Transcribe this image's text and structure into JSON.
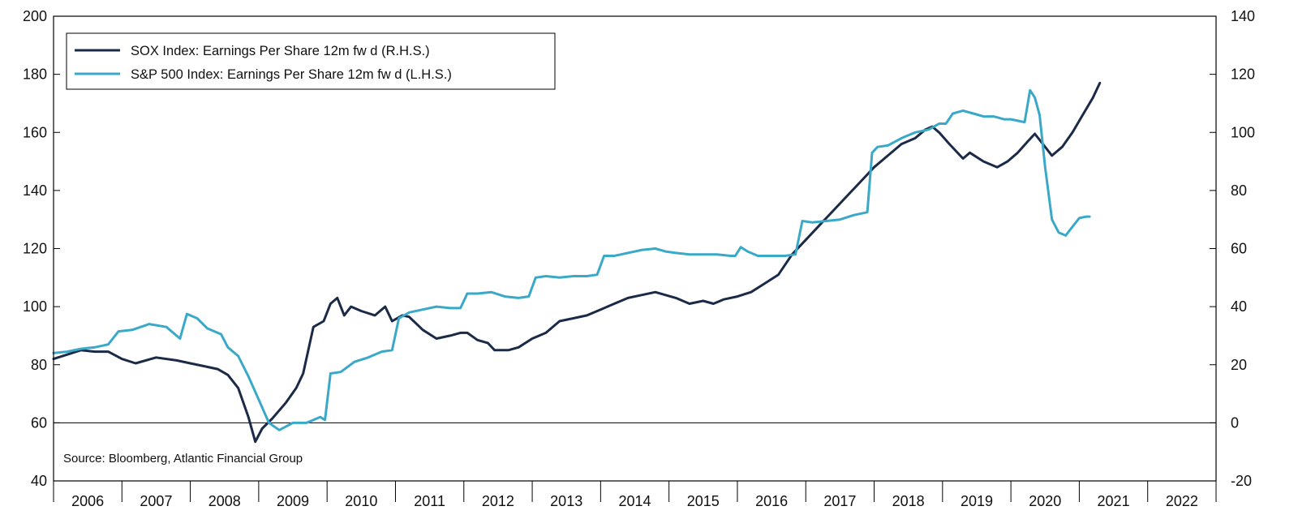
{
  "chart_data": {
    "type": "line",
    "title": "",
    "xlabel": "",
    "ylabel_left": "",
    "ylabel_right": "",
    "source": "Source: Bloomberg, Atlantic Financial Group",
    "x_categories": [
      "2006",
      "2007",
      "2008",
      "2009",
      "2010",
      "2011",
      "2012",
      "2013",
      "2014",
      "2015",
      "2016",
      "2017",
      "2018",
      "2019",
      "2020",
      "2021",
      "2022"
    ],
    "x_range": [
      2006.0,
      2023.0
    ],
    "y_left": {
      "range": [
        40,
        200
      ],
      "ticks": [
        "40",
        "60",
        "80",
        "100",
        "120",
        "140",
        "160",
        "180",
        "200"
      ]
    },
    "y_right": {
      "range": [
        -20,
        140
      ],
      "ticks": [
        "-20",
        "0",
        "20",
        "40",
        "60",
        "80",
        "100",
        "120",
        "140"
      ]
    },
    "reference_line": {
      "axis": "left",
      "value": 60
    },
    "grid": false,
    "legend_position": "top-left",
    "series": [
      {
        "name": "SOX Index: Earnings Per Share 12m fw d (R.H.S.)",
        "axis": "right",
        "color": "#1b2a47",
        "points": [
          [
            2006.0,
            22
          ],
          [
            2006.2,
            23.5
          ],
          [
            2006.4,
            25
          ],
          [
            2006.6,
            24.5
          ],
          [
            2006.8,
            24.5
          ],
          [
            2007.0,
            22
          ],
          [
            2007.2,
            20.5
          ],
          [
            2007.5,
            22.5
          ],
          [
            2007.8,
            21.5
          ],
          [
            2008.0,
            20.5
          ],
          [
            2008.2,
            19.5
          ],
          [
            2008.4,
            18.5
          ],
          [
            2008.55,
            16.5
          ],
          [
            2008.7,
            12
          ],
          [
            2008.85,
            2
          ],
          [
            2008.95,
            -6.5
          ],
          [
            2009.05,
            -2
          ],
          [
            2009.2,
            1.5
          ],
          [
            2009.4,
            7
          ],
          [
            2009.55,
            12
          ],
          [
            2009.65,
            17
          ],
          [
            2009.8,
            33
          ],
          [
            2009.95,
            35
          ],
          [
            2010.05,
            41
          ],
          [
            2010.15,
            43
          ],
          [
            2010.25,
            37
          ],
          [
            2010.35,
            40
          ],
          [
            2010.5,
            38.5
          ],
          [
            2010.7,
            37
          ],
          [
            2010.85,
            40
          ],
          [
            2010.95,
            35
          ],
          [
            2011.1,
            37
          ],
          [
            2011.2,
            36.5
          ],
          [
            2011.4,
            32
          ],
          [
            2011.6,
            29
          ],
          [
            2011.8,
            30
          ],
          [
            2011.95,
            31
          ],
          [
            2012.05,
            31
          ],
          [
            2012.2,
            28.5
          ],
          [
            2012.35,
            27.5
          ],
          [
            2012.45,
            25
          ],
          [
            2012.65,
            25
          ],
          [
            2012.8,
            26
          ],
          [
            2013.0,
            29
          ],
          [
            2013.2,
            31
          ],
          [
            2013.4,
            35
          ],
          [
            2013.6,
            36
          ],
          [
            2013.8,
            37
          ],
          [
            2014.0,
            39
          ],
          [
            2014.2,
            41
          ],
          [
            2014.4,
            43
          ],
          [
            2014.6,
            44
          ],
          [
            2014.8,
            45
          ],
          [
            2014.95,
            44
          ],
          [
            2015.1,
            43
          ],
          [
            2015.3,
            41
          ],
          [
            2015.5,
            42
          ],
          [
            2015.65,
            41
          ],
          [
            2015.8,
            42.5
          ],
          [
            2016.0,
            43.5
          ],
          [
            2016.2,
            45
          ],
          [
            2016.4,
            48
          ],
          [
            2016.6,
            51
          ],
          [
            2016.8,
            58
          ],
          [
            2017.0,
            63
          ],
          [
            2017.2,
            68
          ],
          [
            2017.4,
            73
          ],
          [
            2017.6,
            78
          ],
          [
            2017.8,
            83
          ],
          [
            2018.0,
            88
          ],
          [
            2018.2,
            92
          ],
          [
            2018.4,
            96
          ],
          [
            2018.6,
            98
          ],
          [
            2018.75,
            101
          ],
          [
            2018.85,
            102
          ],
          [
            2018.95,
            100
          ],
          [
            2019.1,
            96
          ],
          [
            2019.3,
            91
          ],
          [
            2019.4,
            93
          ],
          [
            2019.6,
            90
          ],
          [
            2019.8,
            88
          ],
          [
            2019.95,
            90
          ],
          [
            2020.1,
            93
          ],
          [
            2020.25,
            97
          ],
          [
            2020.35,
            99.5
          ],
          [
            2020.5,
            95
          ],
          [
            2020.6,
            92
          ],
          [
            2020.75,
            95
          ],
          [
            2020.9,
            100
          ],
          [
            2021.05,
            106
          ],
          [
            2021.2,
            112
          ],
          [
            2021.3,
            117
          ]
        ]
      },
      {
        "name": "S&P 500 Index: Earnings Per Share 12m fw d (L.H.S.)",
        "axis": "left",
        "color": "#3aa9c8",
        "points": [
          [
            2006.0,
            84
          ],
          [
            2006.2,
            84.5
          ],
          [
            2006.4,
            85.5
          ],
          [
            2006.6,
            86
          ],
          [
            2006.8,
            87
          ],
          [
            2006.95,
            91.5
          ],
          [
            2007.15,
            92
          ],
          [
            2007.4,
            94
          ],
          [
            2007.65,
            93
          ],
          [
            2007.85,
            89
          ],
          [
            2007.95,
            97.5
          ],
          [
            2008.1,
            96
          ],
          [
            2008.25,
            92.5
          ],
          [
            2008.45,
            90.5
          ],
          [
            2008.55,
            86
          ],
          [
            2008.7,
            83
          ],
          [
            2008.85,
            76
          ],
          [
            2009.0,
            68
          ],
          [
            2009.15,
            60
          ],
          [
            2009.3,
            57.5
          ],
          [
            2009.5,
            60
          ],
          [
            2009.7,
            60
          ],
          [
            2009.9,
            62
          ],
          [
            2009.97,
            61
          ],
          [
            2010.05,
            77
          ],
          [
            2010.2,
            77.5
          ],
          [
            2010.4,
            81
          ],
          [
            2010.6,
            82.5
          ],
          [
            2010.8,
            84.5
          ],
          [
            2010.95,
            85
          ],
          [
            2011.05,
            96
          ],
          [
            2011.2,
            98
          ],
          [
            2011.4,
            99
          ],
          [
            2011.6,
            100
          ],
          [
            2011.8,
            99.5
          ],
          [
            2011.95,
            99.5
          ],
          [
            2012.05,
            104.5
          ],
          [
            2012.2,
            104.5
          ],
          [
            2012.4,
            105
          ],
          [
            2012.6,
            103.5
          ],
          [
            2012.8,
            103
          ],
          [
            2012.95,
            103.5
          ],
          [
            2013.05,
            110
          ],
          [
            2013.2,
            110.5
          ],
          [
            2013.4,
            110
          ],
          [
            2013.6,
            110.5
          ],
          [
            2013.8,
            110.5
          ],
          [
            2013.95,
            111
          ],
          [
            2014.05,
            117.5
          ],
          [
            2014.2,
            117.5
          ],
          [
            2014.4,
            118.5
          ],
          [
            2014.6,
            119.5
          ],
          [
            2014.8,
            120
          ],
          [
            2014.95,
            119
          ],
          [
            2015.1,
            118.5
          ],
          [
            2015.3,
            118
          ],
          [
            2015.5,
            118
          ],
          [
            2015.7,
            118
          ],
          [
            2015.9,
            117.5
          ],
          [
            2015.97,
            117.5
          ],
          [
            2016.05,
            120.5
          ],
          [
            2016.15,
            119
          ],
          [
            2016.3,
            117.5
          ],
          [
            2016.5,
            117.5
          ],
          [
            2016.7,
            117.5
          ],
          [
            2016.85,
            118
          ],
          [
            2016.95,
            129.5
          ],
          [
            2017.1,
            129
          ],
          [
            2017.3,
            129.5
          ],
          [
            2017.5,
            130
          ],
          [
            2017.7,
            131.5
          ],
          [
            2017.9,
            132.5
          ],
          [
            2017.97,
            153
          ],
          [
            2018.05,
            155
          ],
          [
            2018.2,
            155.5
          ],
          [
            2018.4,
            158
          ],
          [
            2018.6,
            160
          ],
          [
            2018.8,
            161
          ],
          [
            2018.95,
            163
          ],
          [
            2019.05,
            163
          ],
          [
            2019.15,
            166.5
          ],
          [
            2019.3,
            167.5
          ],
          [
            2019.45,
            166.5
          ],
          [
            2019.6,
            165.5
          ],
          [
            2019.75,
            165.5
          ],
          [
            2019.9,
            164.5
          ],
          [
            2020.0,
            164.5
          ],
          [
            2020.1,
            164
          ],
          [
            2020.2,
            163.5
          ],
          [
            2020.28,
            174.5
          ],
          [
            2020.35,
            172
          ],
          [
            2020.42,
            166
          ],
          [
            2020.5,
            148
          ],
          [
            2020.6,
            130
          ],
          [
            2020.7,
            125.5
          ],
          [
            2020.8,
            124.5
          ],
          [
            2020.9,
            127.5
          ],
          [
            2021.0,
            130.5
          ],
          [
            2021.1,
            131
          ],
          [
            2021.15,
            131
          ]
        ]
      }
    ]
  }
}
